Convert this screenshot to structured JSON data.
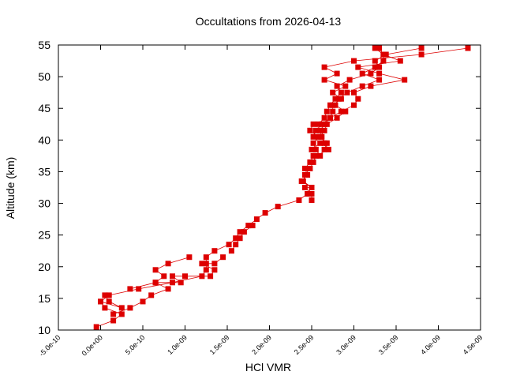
{
  "chart_data": {
    "type": "line",
    "title": "Occultations from 2026-04-13",
    "xlabel": "HCl VMR",
    "ylabel": "Altitude (km)",
    "xlim": [
      -5e-10,
      4.5e-09
    ],
    "ylim": [
      10,
      55
    ],
    "x_ticks": [
      {
        "value": -5e-10,
        "label": "-5.0e-10"
      },
      {
        "value": 0,
        "label": "0.0e+00"
      },
      {
        "value": 5e-10,
        "label": "5.0e-10"
      },
      {
        "value": 1e-09,
        "label": "1.0e-09"
      },
      {
        "value": 1.5e-09,
        "label": "1.5e-09"
      },
      {
        "value": 2e-09,
        "label": "2.0e-09"
      },
      {
        "value": 2.5e-09,
        "label": "2.5e-09"
      },
      {
        "value": 3e-09,
        "label": "3.0e-09"
      },
      {
        "value": 3.5e-09,
        "label": "3.5e-09"
      },
      {
        "value": 4e-09,
        "label": "4.0e-09"
      },
      {
        "value": 4.5e-09,
        "label": "4.5e-09"
      }
    ],
    "y_ticks": [
      {
        "value": 10,
        "label": "10"
      },
      {
        "value": 15,
        "label": "15"
      },
      {
        "value": 20,
        "label": "20"
      },
      {
        "value": 25,
        "label": "25"
      },
      {
        "value": 30,
        "label": "30"
      },
      {
        "value": 35,
        "label": "35"
      },
      {
        "value": 40,
        "label": "40"
      },
      {
        "value": 45,
        "label": "45"
      },
      {
        "value": 50,
        "label": "50"
      },
      {
        "value": 55,
        "label": "55"
      }
    ],
    "grid": false,
    "legend": "none",
    "series": [
      {
        "color": "#dd0000",
        "marker": "square",
        "points": [
          [
            -5e-11,
            10.5
          ],
          [
            1.5e-10,
            11.5
          ],
          [
            2.5e-10,
            12.5
          ],
          [
            5e-11,
            13.5
          ],
          [
            0.0,
            14.5
          ],
          [
            1e-10,
            15.5
          ],
          [
            4.5e-10,
            16.5
          ],
          [
            8.5e-10,
            17.5
          ],
          [
            1.2e-09,
            18.5
          ],
          [
            1.25e-09,
            19.5
          ],
          [
            1.25e-09,
            20.5
          ],
          [
            1.25e-09,
            21.5
          ],
          [
            1.35e-09,
            22.5
          ],
          [
            1.52e-09,
            23.5
          ],
          [
            1.6e-09,
            24.5
          ],
          [
            1.65e-09,
            25.5
          ],
          [
            1.75e-09,
            26.5
          ],
          [
            1.85e-09,
            27.5
          ],
          [
            1.95e-09,
            28.5
          ],
          [
            2.1e-09,
            29.5
          ],
          [
            2.35e-09,
            30.5
          ],
          [
            2.45e-09,
            31.5
          ],
          [
            2.5e-09,
            32.5
          ],
          [
            2.4e-09,
            33.5
          ],
          [
            2.42e-09,
            34.5
          ],
          [
            2.48e-09,
            35.5
          ],
          [
            2.52e-09,
            36.5
          ],
          [
            2.55e-09,
            37.5
          ],
          [
            2.7e-09,
            38.5
          ],
          [
            2.65e-09,
            39.5
          ],
          [
            2.62e-09,
            40.5
          ],
          [
            2.6e-09,
            41.5
          ],
          [
            2.65e-09,
            42.5
          ],
          [
            2.72e-09,
            43.5
          ],
          [
            2.85e-09,
            44.5
          ],
          [
            3e-09,
            45.5
          ],
          [
            3.05e-09,
            46.5
          ],
          [
            3e-09,
            47.5
          ],
          [
            3.2e-09,
            48.5
          ],
          [
            3.6e-09,
            49.5
          ],
          [
            3.3e-09,
            50.5
          ],
          [
            3.05e-09,
            51.5
          ],
          [
            3.55e-09,
            52.5
          ],
          [
            3.35e-09,
            53.5
          ],
          [
            3.25e-09,
            54.5
          ]
        ]
      },
      {
        "color": "#dd0000",
        "marker": "square",
        "points": [
          [
            1.5e-10,
            12.5
          ],
          [
            3.5e-10,
            13.5
          ],
          [
            5e-10,
            14.5
          ],
          [
            6e-10,
            15.5
          ],
          [
            8e-10,
            16.5
          ],
          [
            6.5e-10,
            17.5
          ],
          [
            7.5e-10,
            18.5
          ],
          [
            6.5e-10,
            19.5
          ],
          [
            8e-10,
            20.5
          ],
          [
            1.05e-09,
            21.5
          ]
        ]
      },
      {
        "color": "#dd0000",
        "marker": "square",
        "points": [
          [
            5e-11,
            15.5
          ],
          [
            1e-10,
            14.5
          ],
          [
            2.5e-10,
            13.5
          ],
          [
            0.0,
            14.5
          ]
        ]
      },
      {
        "color": "#dd0000",
        "marker": "square",
        "points": [
          [
            3.5e-10,
            16.5
          ],
          [
            6.5e-10,
            17.5
          ],
          [
            9.5e-10,
            17.5
          ],
          [
            8.5e-10,
            18.5
          ],
          [
            1e-09,
            18.5
          ],
          [
            1.3e-09,
            18.5
          ],
          [
            1.35e-09,
            19.5
          ],
          [
            1.2e-09,
            20.5
          ],
          [
            1.35e-09,
            20.5
          ],
          [
            1.45e-09,
            21.5
          ]
        ]
      },
      {
        "color": "#dd0000",
        "marker": "square",
        "points": [
          [
            1.55e-09,
            22.5
          ],
          [
            1.6e-09,
            23.5
          ],
          [
            1.65e-09,
            24.5
          ],
          [
            1.7e-09,
            25.5
          ],
          [
            1.8e-09,
            26.5
          ]
        ]
      },
      {
        "color": "#dd0000",
        "marker": "square",
        "points": [
          [
            2.5e-09,
            30.5
          ],
          [
            2.5e-09,
            31.5
          ],
          [
            2.42e-09,
            32.5
          ],
          [
            2.5e-09,
            32.5
          ],
          [
            2.38e-09,
            33.5
          ],
          [
            2.45e-09,
            34.5
          ],
          [
            2.42e-09,
            35.5
          ],
          [
            2.48e-09,
            36.5
          ],
          [
            2.52e-09,
            37.5
          ],
          [
            2.6e-09,
            37.5
          ],
          [
            2.55e-09,
            38.5
          ],
          [
            2.52e-09,
            39.5
          ],
          [
            2.58e-09,
            40.5
          ],
          [
            2.48e-09,
            41.5
          ],
          [
            2.52e-09,
            42.5
          ],
          [
            2.58e-09,
            42.5
          ],
          [
            2.65e-09,
            43.5
          ],
          [
            2.68e-09,
            44.5
          ],
          [
            2.72e-09,
            45.5
          ],
          [
            2.78e-09,
            46.5
          ],
          [
            2.85e-09,
            47.5
          ],
          [
            2.8e-09,
            48.5
          ],
          [
            2.95e-09,
            49.5
          ],
          [
            3.2e-09,
            50.5
          ],
          [
            3.3e-09,
            51.5
          ],
          [
            3.25e-09,
            52.5
          ],
          [
            3.38e-09,
            53.5
          ],
          [
            3.8e-09,
            54.5
          ]
        ]
      },
      {
        "color": "#dd0000",
        "marker": "square",
        "points": [
          [
            2.5e-09,
            38.5
          ],
          [
            2.6e-09,
            39.5
          ],
          [
            2.52e-09,
            40.5
          ],
          [
            2.55e-09,
            41.5
          ],
          [
            2.62e-09,
            42.5
          ],
          [
            2.72e-09,
            43.5
          ],
          [
            2.75e-09,
            44.5
          ],
          [
            2.75e-09,
            45.5
          ],
          [
            2.85e-09,
            46.5
          ],
          [
            2.75e-09,
            47.5
          ],
          [
            2.9e-09,
            48.5
          ],
          [
            2.65e-09,
            49.5
          ],
          [
            2.8e-09,
            50.5
          ],
          [
            2.65e-09,
            51.5
          ],
          [
            3e-09,
            52.5
          ],
          [
            3.8e-09,
            53.5
          ],
          [
            4.35e-09,
            54.5
          ]
        ]
      },
      {
        "color": "#dd0000",
        "marker": "square",
        "points": [
          [
            2.65e-09,
            38.5
          ],
          [
            2.68e-09,
            39.5
          ],
          [
            2.6e-09,
            40.5
          ],
          [
            2.65e-09,
            41.5
          ],
          [
            2.68e-09,
            42.5
          ],
          [
            2.8e-09,
            43.5
          ],
          [
            2.9e-09,
            44.5
          ],
          [
            2.78e-09,
            45.5
          ],
          [
            2.82e-09,
            46.5
          ],
          [
            2.92e-09,
            47.5
          ],
          [
            3.1e-09,
            48.5
          ],
          [
            3.3e-09,
            49.5
          ],
          [
            3.1e-09,
            50.5
          ],
          [
            3.25e-09,
            51.5
          ],
          [
            3.35e-09,
            52.5
          ],
          [
            3.35e-09,
            53.5
          ],
          [
            3.3e-09,
            54.5
          ]
        ]
      }
    ]
  }
}
